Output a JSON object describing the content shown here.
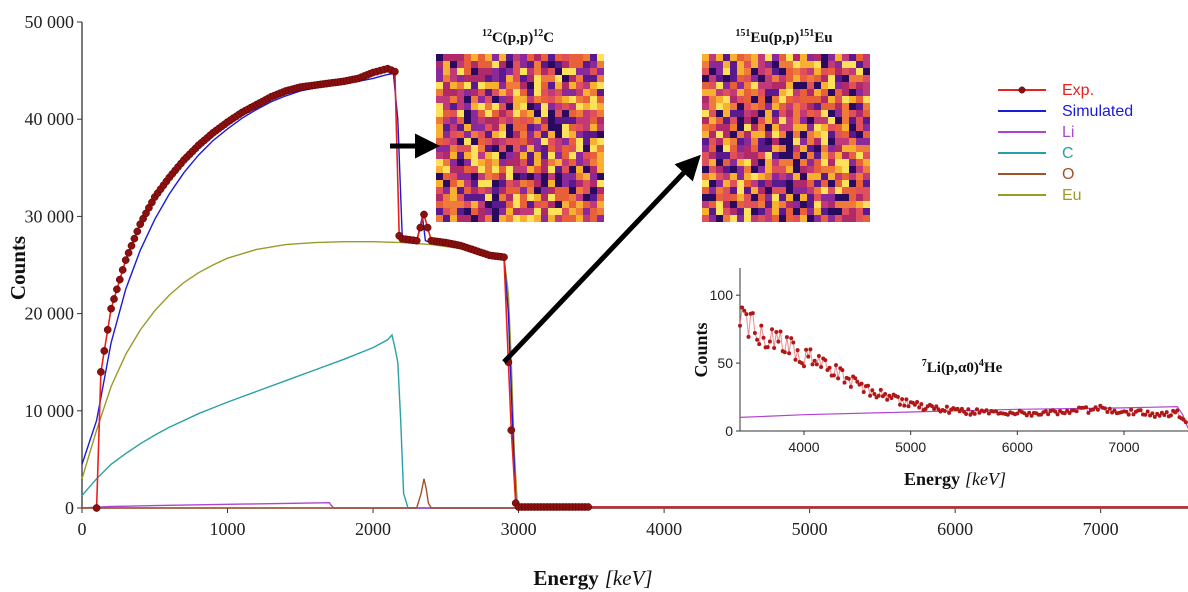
{
  "chart_data": {
    "type": "line",
    "xlabel": "Energy",
    "xunit": "[keV]",
    "ylabel": "Counts",
    "xlim": [
      0,
      7600
    ],
    "ylim": [
      0,
      50000
    ],
    "xticks": [
      0,
      1000,
      2000,
      3000,
      4000,
      5000,
      6000,
      7000
    ],
    "yticks": [
      0,
      10000,
      20000,
      30000,
      40000,
      50000
    ],
    "xtick_labels": [
      "0",
      "1000",
      "2000",
      "3000",
      "4000",
      "5000",
      "6000",
      "7000"
    ],
    "ytick_labels": [
      "0",
      "10 000",
      "20 000",
      "30 000",
      "40 000",
      "50 000"
    ],
    "legend_position": "top-right",
    "series": [
      {
        "name": "Exp.",
        "color": "#e8201e",
        "marker": "#8b1010",
        "x": [
          100,
          130,
          200,
          300,
          400,
          500,
          600,
          700,
          800,
          900,
          1000,
          1100,
          1200,
          1300,
          1400,
          1500,
          1600,
          1700,
          1800,
          1900,
          2000,
          2050,
          2100,
          2150,
          2180,
          2200,
          2250,
          2300,
          2350,
          2400,
          2500,
          2600,
          2700,
          2800,
          2900,
          2930,
          2950,
          2980,
          3000,
          3500,
          4000,
          5000,
          6000,
          7000,
          7600
        ],
        "y": [
          0,
          14000,
          20500,
          25500,
          29200,
          32000,
          34000,
          35800,
          37300,
          38600,
          39700,
          40700,
          41500,
          42300,
          42900,
          43300,
          43500,
          43700,
          43900,
          44200,
          44800,
          45000,
          45200,
          44900,
          28000,
          27700,
          27600,
          27500,
          30200,
          27500,
          27300,
          27000,
          26500,
          26000,
          25800,
          15000,
          8000,
          500,
          100,
          100,
          100,
          100,
          100,
          100,
          100
        ]
      },
      {
        "name": "Simulated",
        "color": "#1a1ad8",
        "x": [
          0,
          100,
          200,
          300,
          400,
          500,
          600,
          700,
          800,
          900,
          1000,
          1100,
          1200,
          1300,
          1400,
          1500,
          1600,
          1700,
          1800,
          1900,
          2000,
          2100,
          2140,
          2170,
          2200,
          2300,
          2340,
          2360,
          2380,
          2500,
          2600,
          2700,
          2800,
          2900,
          2930,
          2960,
          2980,
          3000,
          4000,
          5000,
          6000,
          7000,
          7600
        ],
        "y": [
          4500,
          9000,
          17000,
          22500,
          26500,
          29700,
          32300,
          34500,
          36300,
          37800,
          39000,
          40100,
          41000,
          41800,
          42400,
          42900,
          43200,
          43500,
          43700,
          43900,
          44200,
          44600,
          44700,
          40000,
          28000,
          27500,
          30000,
          27500,
          27400,
          27300,
          27000,
          26600,
          26200,
          25800,
          20000,
          8000,
          1000,
          100,
          100,
          100,
          100,
          100,
          100
        ]
      },
      {
        "name": "Li",
        "color": "#b044d0",
        "x": [
          0,
          200,
          500,
          800,
          1100,
          1400,
          1700,
          1710,
          1730,
          2500,
          3500,
          4500,
          5500,
          6500,
          7500,
          7600
        ],
        "y": [
          0,
          150,
          250,
          330,
          400,
          470,
          550,
          300,
          0,
          0,
          0,
          0,
          0,
          0,
          0,
          0
        ]
      },
      {
        "name": "C",
        "color": "#2aa0a6",
        "x": [
          0,
          100,
          200,
          300,
          400,
          500,
          600,
          700,
          800,
          900,
          1000,
          1200,
          1400,
          1600,
          1800,
          2000,
          2100,
          2130,
          2150,
          2170,
          2190,
          2210,
          2240,
          3000,
          4000,
          5000,
          6000,
          7000,
          7600
        ],
        "y": [
          1300,
          3000,
          4500,
          5600,
          6600,
          7500,
          8300,
          9000,
          9700,
          10300,
          10900,
          12000,
          13100,
          14200,
          15300,
          16500,
          17300,
          17800,
          16500,
          15000,
          9000,
          1500,
          0,
          0,
          0,
          0,
          0,
          0,
          0
        ]
      },
      {
        "name": "O",
        "color": "#a0522d",
        "x": [
          0,
          2300,
          2330,
          2350,
          2365,
          2380,
          2400,
          3000,
          4000,
          5000,
          6000,
          7000,
          7600
        ],
        "y": [
          0,
          0,
          1500,
          3000,
          2000,
          500,
          0,
          0,
          0,
          0,
          0,
          0,
          0
        ]
      },
      {
        "name": "Eu",
        "color": "#9a9a2a",
        "x": [
          0,
          100,
          200,
          300,
          400,
          500,
          600,
          700,
          800,
          900,
          1000,
          1200,
          1400,
          1600,
          1800,
          2000,
          2200,
          2400,
          2600,
          2800,
          2900,
          2930,
          2950,
          2970,
          2990,
          3000,
          4000,
          5000,
          6000,
          7000,
          7600
        ],
        "y": [
          3000,
          8000,
          12500,
          15800,
          18300,
          20300,
          21900,
          23200,
          24200,
          25000,
          25700,
          26600,
          27100,
          27300,
          27400,
          27400,
          27300,
          27100,
          26700,
          26200,
          25800,
          22000,
          15000,
          6000,
          800,
          100,
          100,
          100,
          100,
          100,
          100
        ]
      }
    ],
    "insets": [
      {
        "type": "heatmap",
        "title_parts": [
          "12",
          "C(p,p)",
          "12",
          "C"
        ]
      },
      {
        "type": "heatmap",
        "title_parts": [
          "151",
          "Eu(p,p)",
          "151",
          "Eu"
        ]
      }
    ],
    "inset_plot": {
      "type": "line",
      "annotation_parts": [
        "7",
        "Li(p,α0)",
        "4",
        "He"
      ],
      "xlabel": "Energy",
      "xunit": "[keV]",
      "ylabel": "Counts",
      "xlim": [
        3400,
        7600
      ],
      "ylim": [
        0,
        120
      ],
      "xticks": [
        4000,
        5000,
        6000,
        7000
      ],
      "xtick_labels": [
        "4000",
        "5000",
        "6000",
        "7000"
      ],
      "yticks": [
        0,
        50,
        100
      ],
      "ytick_labels": [
        "0",
        "50",
        "100"
      ],
      "series": [
        {
          "name": "Exp.",
          "color": "#e8201e",
          "x": [
            3400,
            3500,
            3600,
            3700,
            3800,
            3900,
            4000,
            4100,
            4200,
            4300,
            4400,
            4500,
            4600,
            4700,
            4800,
            4900,
            5000,
            5100,
            5200,
            5300,
            5400,
            5500,
            5600,
            5800,
            6000,
            6200,
            6400,
            6600,
            6800,
            7000,
            7200,
            7400,
            7500,
            7600
          ],
          "y": [
            90,
            78,
            72,
            68,
            64,
            60,
            55,
            52,
            47,
            43,
            38,
            34,
            30,
            27,
            25,
            22,
            20,
            18,
            17,
            16,
            15,
            15,
            14,
            14,
            13,
            13,
            14,
            15,
            17,
            14,
            13,
            12,
            15,
            3
          ]
        },
        {
          "name": "Li",
          "color": "#b044d0",
          "x": [
            3400,
            4000,
            5000,
            6000,
            7000,
            7500,
            7550,
            7600
          ],
          "y": [
            10,
            12,
            14,
            16,
            17,
            18,
            12,
            2
          ]
        }
      ]
    }
  }
}
